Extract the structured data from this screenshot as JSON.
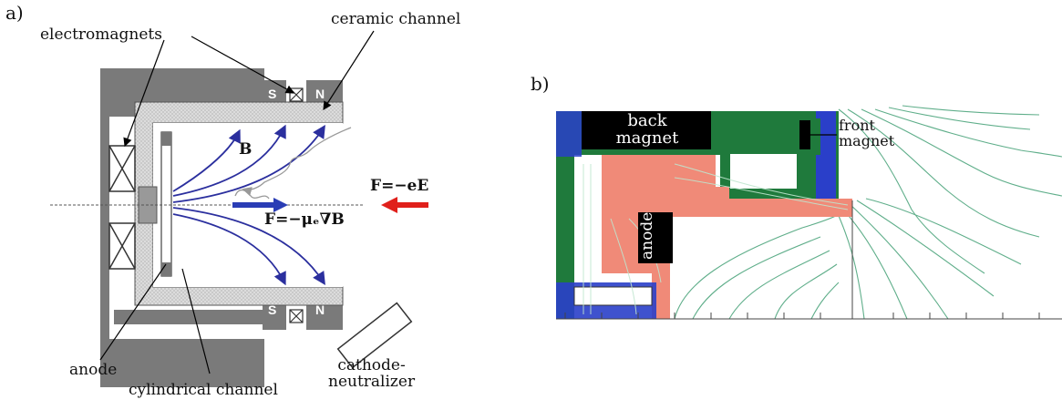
{
  "panel_a": {
    "tag": "a)",
    "labels": {
      "electromagnets": "electromagnets",
      "ceramic_channel": "ceramic channel",
      "anode": "anode",
      "cylindrical_channel": "cylindrical channel",
      "cathode_neutralizer": "cathode-\nneutralizer",
      "field_B": "B",
      "force_E": "F=−eE",
      "force_gradB": "F=−μₑ∇B",
      "pole_S": "S",
      "pole_N": "N"
    },
    "colors": {
      "body": "#7a7a7a",
      "channel_fill": "#d9d9d9",
      "field_lines": "#2b2f9e",
      "force_E_arrow": "#e0201b",
      "force_gradB_arrow": "#2a3db5"
    }
  },
  "panel_b": {
    "tag": "b)",
    "labels": {
      "back_magnet": "back\nmagnet",
      "front_magnet": "front\nmagnet",
      "anode": "anode"
    },
    "colors": {
      "iron": "#1f7a3c",
      "anode_region": "#f08a78",
      "magnet": "#000000",
      "pole_region": "#2a3fc9",
      "contours": "#5fae8a"
    }
  }
}
